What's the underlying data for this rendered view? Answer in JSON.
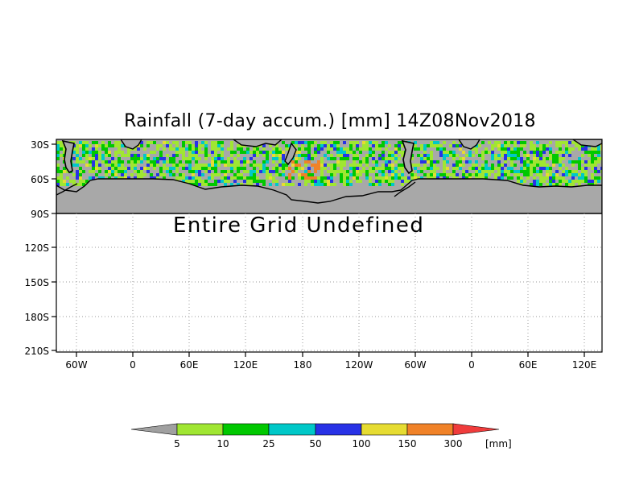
{
  "title": "Rainfall (7-day accum.) [mm] 14Z08Nov2018",
  "note": "Entire Grid Undefined",
  "y_ticks": [
    "30S",
    "60S",
    "90S",
    "120S",
    "150S",
    "180S",
    "210S"
  ],
  "x_ticks": [
    "60W",
    "0",
    "60E",
    "120E",
    "180",
    "120W",
    "60W",
    "0",
    "60E",
    "120E"
  ],
  "colorbar": {
    "labels": [
      "5",
      "10",
      "25",
      "50",
      "100",
      "150",
      "300"
    ],
    "unit": "[mm]",
    "colors": [
      "#a0a0a0",
      "#a0e632",
      "#00c800",
      "#00c8c8",
      "#2832e6",
      "#e6dc32",
      "#f08228",
      "#f03c3c"
    ]
  },
  "colors": {
    "land": "#a8a8a8",
    "frame": "#000000",
    "grid": "#9a9a9a"
  }
}
